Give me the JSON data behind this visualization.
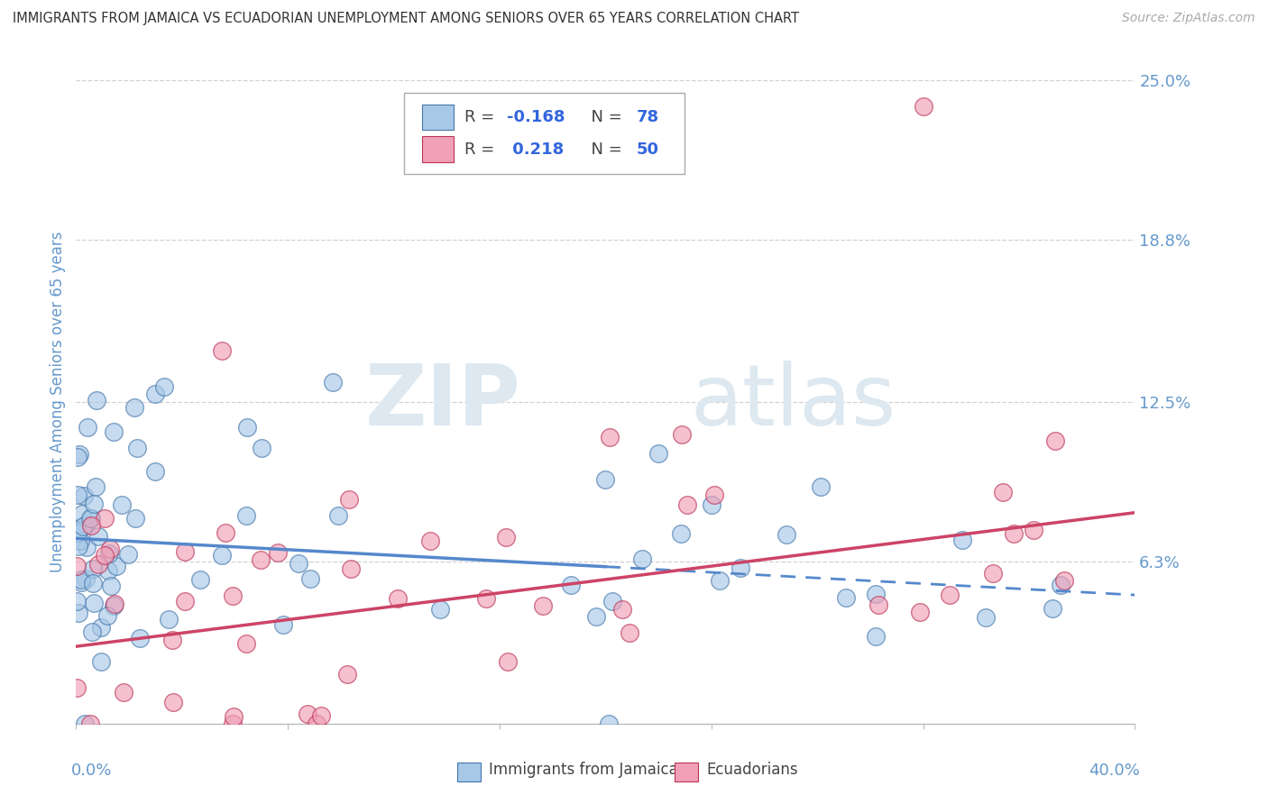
{
  "title": "IMMIGRANTS FROM JAMAICA VS ECUADORIAN UNEMPLOYMENT AMONG SENIORS OVER 65 YEARS CORRELATION CHART",
  "source": "Source: ZipAtlas.com",
  "ylabel": "Unemployment Among Seniors over 65 years",
  "ytick_labels": [
    "6.3%",
    "12.5%",
    "18.8%",
    "25.0%"
  ],
  "ytick_values": [
    6.3,
    12.5,
    18.8,
    25.0
  ],
  "xmin": 0.0,
  "xmax": 40.0,
  "ymin": 0.0,
  "ymax": 25.0,
  "blue_R": -0.168,
  "blue_N": 78,
  "pink_R": 0.218,
  "pink_N": 50,
  "blue_color": "#a8c8e8",
  "pink_color": "#f0a0b8",
  "blue_line_color": "#5588cc",
  "pink_line_color": "#cc4466",
  "blue_scatter_edge": "#4477aa",
  "pink_scatter_edge": "#bb3355",
  "blue_intercept": 7.2,
  "blue_slope": -0.055,
  "blue_solid_end": 20.0,
  "pink_intercept": 3.0,
  "pink_slope": 0.13,
  "legend_label_blue": "Immigrants from Jamaica",
  "legend_label_pink": "Ecuadorians",
  "watermark_zip": "ZIP",
  "watermark_atlas": "atlas",
  "background_color": "#ffffff",
  "grid_color": "#cccccc",
  "title_color": "#333333",
  "axis_label_color": "#6699cc",
  "tick_color": "#6699cc"
}
